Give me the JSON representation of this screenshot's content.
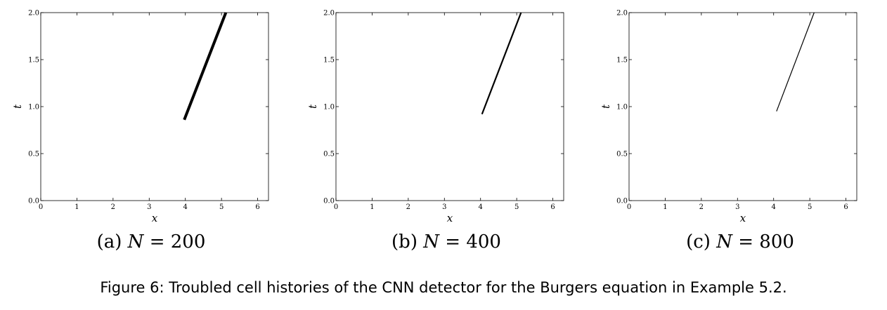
{
  "chart_data": [
    {
      "type": "line",
      "title": "",
      "xlabel": "x",
      "ylabel": "t",
      "xlim": [
        0,
        6.3
      ],
      "ylim": [
        0,
        2.0
      ],
      "xticks": [
        "0",
        "1",
        "2",
        "3",
        "4",
        "5",
        "6"
      ],
      "yticks": [
        "0.0",
        "0.5",
        "1.0",
        "1.5",
        "2.0"
      ],
      "grid": false,
      "series": [
        {
          "x": [
            3.97,
            5.12
          ],
          "y": [
            0.86,
            2.0
          ],
          "stroke": 4
        }
      ],
      "subcaption": {
        "prefix": "(a)",
        "var": "N",
        "op": "=",
        "value": "200"
      }
    },
    {
      "type": "line",
      "title": "",
      "xlabel": "x",
      "ylabel": "t",
      "xlim": [
        0,
        6.3
      ],
      "ylim": [
        0,
        2.0
      ],
      "xticks": [
        "0",
        "1",
        "2",
        "3",
        "4",
        "5",
        "6"
      ],
      "yticks": [
        "0.0",
        "0.5",
        "1.0",
        "1.5",
        "2.0"
      ],
      "grid": false,
      "series": [
        {
          "x": [
            4.04,
            5.12
          ],
          "y": [
            0.92,
            2.0
          ],
          "stroke": 2.2
        }
      ],
      "subcaption": {
        "prefix": "(b)",
        "var": "N",
        "op": "=",
        "value": "400"
      }
    },
    {
      "type": "line",
      "title": "",
      "xlabel": "x",
      "ylabel": "t",
      "xlim": [
        0,
        6.3
      ],
      "ylim": [
        0,
        2.0
      ],
      "xticks": [
        "0",
        "1",
        "2",
        "3",
        "4",
        "5",
        "6"
      ],
      "yticks": [
        "0.0",
        "0.5",
        "1.0",
        "1.5",
        "2.0"
      ],
      "grid": false,
      "series": [
        {
          "x": [
            4.08,
            5.12
          ],
          "y": [
            0.95,
            2.0
          ],
          "stroke": 1.2
        }
      ],
      "subcaption": {
        "prefix": "(c)",
        "var": "N",
        "op": "=",
        "value": "800"
      }
    }
  ],
  "caption": "Figure 6: Troubled cell histories of the CNN detector for the Burgers equation in Example 5.2."
}
